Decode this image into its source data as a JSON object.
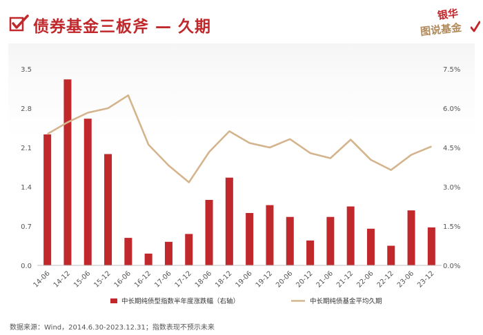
{
  "header": {
    "title": "债券基金三板斧 — 久期",
    "logo_top": "银华",
    "logo_bottom": "图说基金"
  },
  "footer": {
    "source": "数据来源：Wind，2014.6.30-2023.12.31；指数表现不预示未来"
  },
  "colors": {
    "accent": "#c0282b",
    "bar": "#c0282b",
    "line": "#d4b48c",
    "text": "#555555"
  },
  "chart_data": {
    "type": "bar+line",
    "categories": [
      "14-06",
      "14-12",
      "15-06",
      "15-12",
      "16-06",
      "16-12",
      "17-06",
      "17-12",
      "18-06",
      "18-12",
      "19-06",
      "19-12",
      "20-06",
      "20-12",
      "21-06",
      "21-12",
      "22-06",
      "22-12",
      "23-06",
      "23-12"
    ],
    "series": [
      {
        "name": "中长期纯债型指数半年度涨跌幅（右轴）",
        "type": "bar",
        "axis": "right",
        "unit": "%",
        "values": [
          5.0,
          7.1,
          5.6,
          4.25,
          1.05,
          0.45,
          0.9,
          1.2,
          2.5,
          3.35,
          2.0,
          2.3,
          1.85,
          0.95,
          1.85,
          2.25,
          1.4,
          0.75,
          2.1,
          1.45
        ]
      },
      {
        "name": "中长期纯债基金平均久期",
        "type": "line",
        "axis": "left",
        "values": [
          2.34,
          2.55,
          2.72,
          2.8,
          3.03,
          2.15,
          1.78,
          1.48,
          2.02,
          2.39,
          2.18,
          2.1,
          2.25,
          2.0,
          1.91,
          2.24,
          1.88,
          1.7,
          1.97,
          2.12
        ]
      }
    ],
    "left_axis": {
      "ticks": [
        "0.0",
        "0.7",
        "1.4",
        "2.1",
        "2.8",
        "3.5"
      ],
      "range": [
        0,
        3.5
      ]
    },
    "right_axis": {
      "ticks": [
        "0.0%",
        "1.5%",
        "3.0%",
        "4.5%",
        "6.0%",
        "7.5%"
      ],
      "range": [
        0,
        7.5
      ]
    },
    "legend_position": "bottom",
    "grid": false
  }
}
